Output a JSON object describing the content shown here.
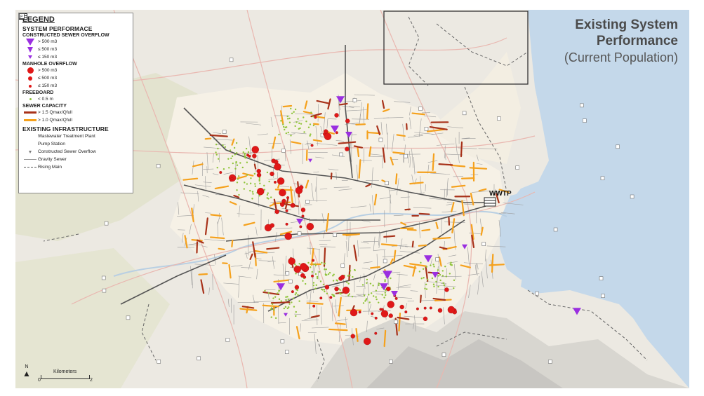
{
  "title": {
    "line1": "Existing System",
    "line2": "Performance",
    "line3": "(Current Population)"
  },
  "legend": {
    "heading": "LEGEND",
    "system_performance": "SYSTEM PERFORMACE",
    "cso_heading": "CONSTRUCTED SEWER OVERFLOW",
    "cso_items": [
      "> 500 m3",
      "≤ 500 m3",
      "≤ 150 m3"
    ],
    "manhole_heading": "MANHOLE OVERFLOW",
    "manhole_items": [
      "> 500 m3",
      "≤ 500 m3",
      "≤ 150 m3"
    ],
    "freeboard_heading": "FREEBOARD",
    "freeboard_item": "< 0.5 m",
    "capacity_heading": "SEWER CAPACITY",
    "capacity_items": [
      "> 1.5 Qmax/Qfull",
      "> 1.0 Qmax/Qfull"
    ],
    "infra_heading": "EXISTING INFRASTRUCTURE",
    "infra_items": [
      "Wastewater Treatment Plant",
      "Pump Station",
      "Constructed Sewer Overflow",
      "Gravity Sewer",
      "Rising Main"
    ]
  },
  "map_labels": {
    "wwtp": "WWTP"
  },
  "scale_bar": {
    "north": "N",
    "unit": "Kilometers",
    "start": "0",
    "end": "2"
  },
  "colors": {
    "cso": "#9a2fe0",
    "manhole": "#e01818",
    "freeboard": "#8fc43a",
    "capacity_high": "#a8321a",
    "capacity_mid": "#f5a11c",
    "water": "#c4d8ea",
    "land": "#ece9e2",
    "urban": "#f6f1e6"
  }
}
